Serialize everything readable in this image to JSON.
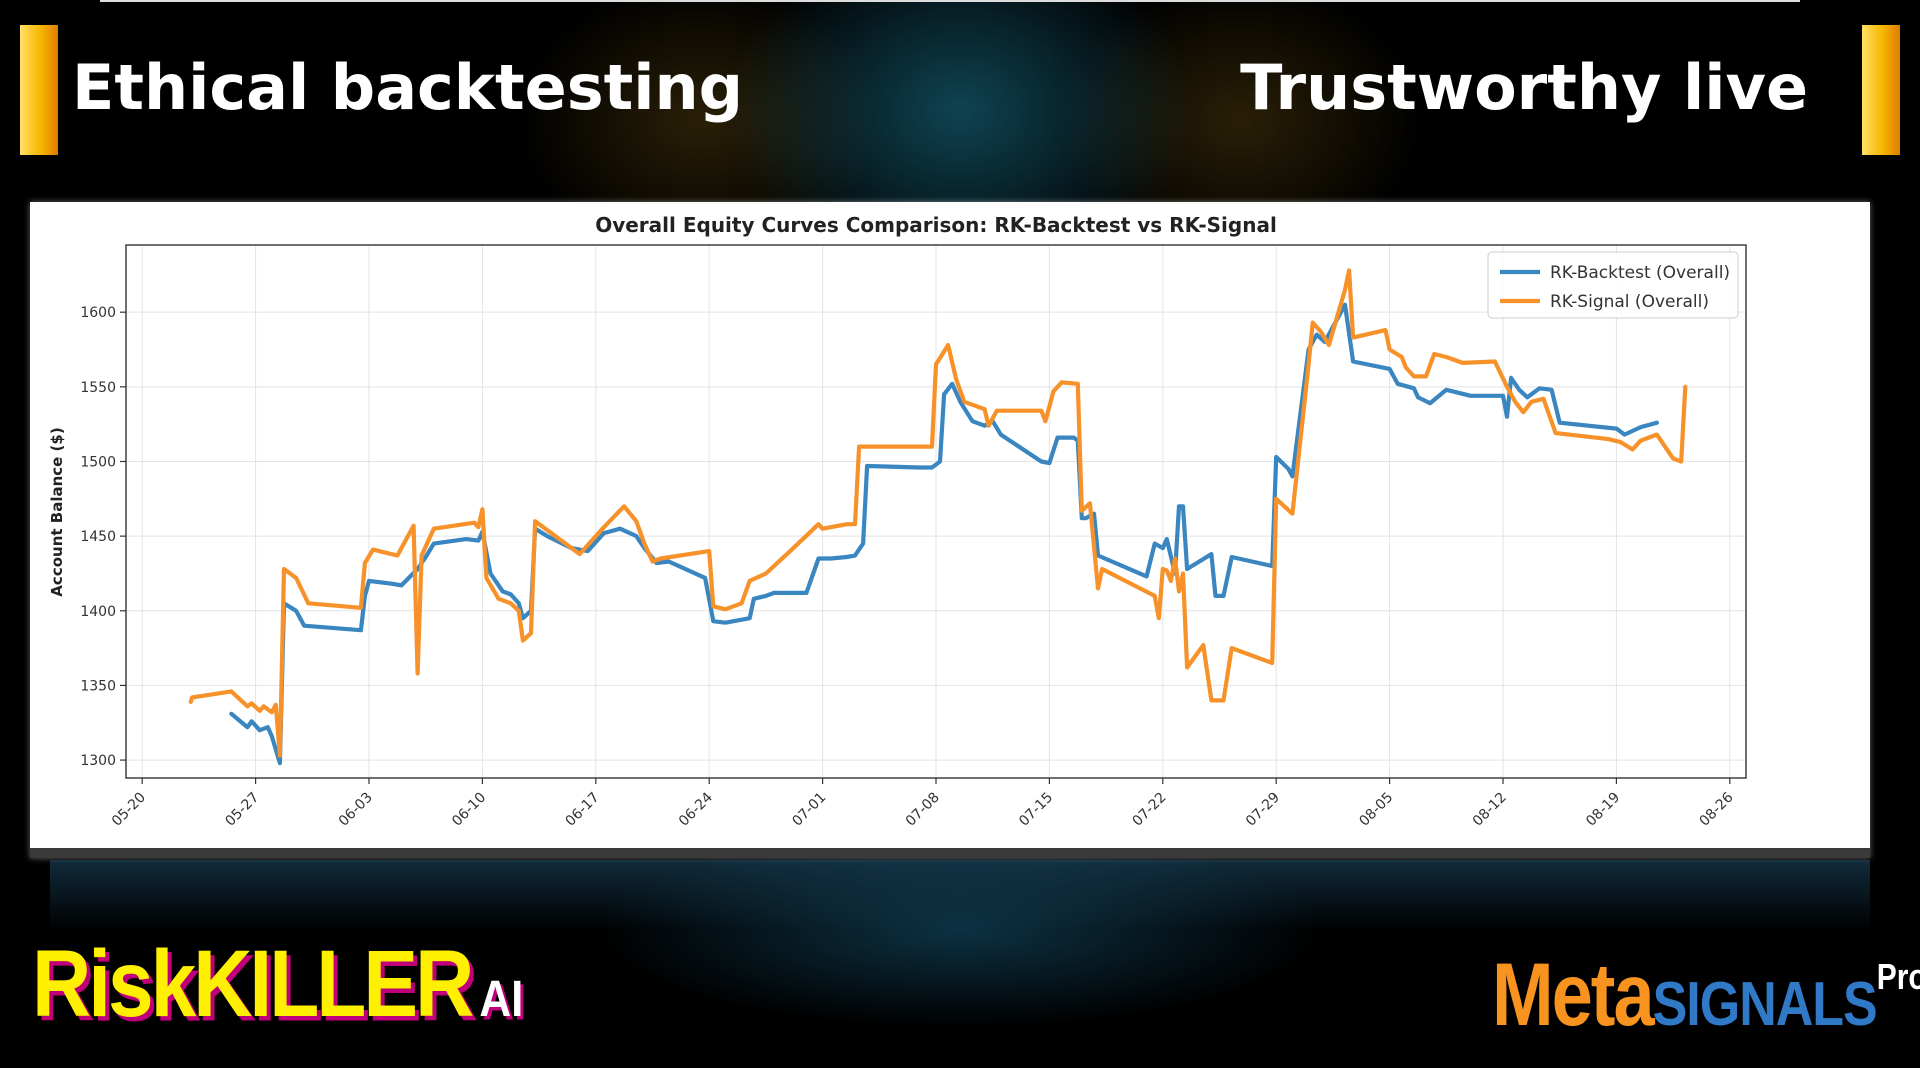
{
  "header": {
    "left_title": "Ethical backtesting",
    "right_title": "Trustworthy live"
  },
  "branding": {
    "left_logo_main": "RiskKILLER",
    "left_logo_sub": "AI",
    "right_logo_meta": "Meta",
    "right_logo_signals": "SIGNALS",
    "right_logo_pro": "Pro"
  },
  "colors": {
    "accent_bar": "#f7b500",
    "backtest_line": "#3a86c0",
    "signal_line": "#f7922a"
  },
  "chart_data": {
    "type": "line",
    "title": "Overall Equity Curves Comparison: RK-Backtest vs RK-Signal",
    "xlabel": "",
    "ylabel": "Account Balance ($)",
    "x_ticks": [
      "05-20",
      "05-27",
      "06-03",
      "06-10",
      "06-17",
      "06-24",
      "07-01",
      "07-08",
      "07-15",
      "07-22",
      "07-29",
      "08-05",
      "08-12",
      "08-19",
      "08-26"
    ],
    "y_ticks": [
      1300,
      1350,
      1400,
      1450,
      1500,
      1550,
      1600
    ],
    "xlim": [
      "2024-05-19",
      "2024-08-27"
    ],
    "ylim": [
      1288,
      1645
    ],
    "grid": true,
    "legend_position": "top-right",
    "series": [
      {
        "name": "RK-Backtest (Overall)",
        "color": "#3a86c0",
        "points": [
          [
            "2024-05-25T12:00",
            1331
          ],
          [
            "2024-05-26T12:00",
            1322
          ],
          [
            "2024-05-26T18:00",
            1326
          ],
          [
            "2024-05-27T06:00",
            1320
          ],
          [
            "2024-05-27T18:00",
            1322
          ],
          [
            "2024-05-28T00:00",
            1316
          ],
          [
            "2024-05-28T12:00",
            1298
          ],
          [
            "2024-05-28T18:00",
            1405
          ],
          [
            "2024-05-29T12:00",
            1400
          ],
          [
            "2024-05-30T00:00",
            1390
          ],
          [
            "2024-06-02T12:00",
            1387
          ],
          [
            "2024-06-02T18:00",
            1410
          ],
          [
            "2024-06-03T00:00",
            1420
          ],
          [
            "2024-06-04T12:00",
            1418
          ],
          [
            "2024-06-05T00:00",
            1417
          ],
          [
            "2024-06-06T00:00",
            1428
          ],
          [
            "2024-06-06T12:00",
            1436
          ],
          [
            "2024-06-07T00:00",
            1445
          ],
          [
            "2024-06-09T00:00",
            1448
          ],
          [
            "2024-06-09T18:00",
            1447
          ],
          [
            "2024-06-10T00:00",
            1453
          ],
          [
            "2024-06-10T12:00",
            1425
          ],
          [
            "2024-06-11T06:00",
            1413
          ],
          [
            "2024-06-11T18:00",
            1411
          ],
          [
            "2024-06-12T06:00",
            1405
          ],
          [
            "2024-06-12T12:00",
            1395
          ],
          [
            "2024-06-13T00:00",
            1400
          ],
          [
            "2024-06-13T06:00",
            1455
          ],
          [
            "2024-06-14T00:00",
            1450
          ],
          [
            "2024-06-15T12:00",
            1442
          ],
          [
            "2024-06-16T12:00",
            1440
          ],
          [
            "2024-06-17T12:00",
            1452
          ],
          [
            "2024-06-18T12:00",
            1455
          ],
          [
            "2024-06-19T12:00",
            1450
          ],
          [
            "2024-06-20T00:00",
            1442
          ],
          [
            "2024-06-20T18:00",
            1432
          ],
          [
            "2024-06-21T12:00",
            1433
          ],
          [
            "2024-06-23T18:00",
            1422
          ],
          [
            "2024-06-24T06:00",
            1393
          ],
          [
            "2024-06-25T00:00",
            1392
          ],
          [
            "2024-06-26T12:00",
            1395
          ],
          [
            "2024-06-26T18:00",
            1408
          ],
          [
            "2024-06-27T12:00",
            1410
          ],
          [
            "2024-06-28T00:00",
            1412
          ],
          [
            "2024-06-30T00:00",
            1412
          ],
          [
            "2024-06-30T18:00",
            1435
          ],
          [
            "2024-07-01T12:00",
            1435
          ],
          [
            "2024-07-02T12:00",
            1436
          ],
          [
            "2024-07-03T00:00",
            1437
          ],
          [
            "2024-07-03T12:00",
            1445
          ],
          [
            "2024-07-03T18:00",
            1497
          ],
          [
            "2024-07-07T00:00",
            1496
          ],
          [
            "2024-07-07T18:00",
            1496
          ],
          [
            "2024-07-08T06:00",
            1500
          ],
          [
            "2024-07-08T12:00",
            1545
          ],
          [
            "2024-07-09T00:00",
            1552
          ],
          [
            "2024-07-09T12:00",
            1540
          ],
          [
            "2024-07-10T06:00",
            1527
          ],
          [
            "2024-07-11T00:00",
            1524
          ],
          [
            "2024-07-11T12:00",
            1527
          ],
          [
            "2024-07-12T00:00",
            1518
          ],
          [
            "2024-07-14T12:00",
            1500
          ],
          [
            "2024-07-15T00:00",
            1499
          ],
          [
            "2024-07-15T12:00",
            1516
          ],
          [
            "2024-07-16T12:00",
            1516
          ],
          [
            "2024-07-16T18:00",
            1514
          ],
          [
            "2024-07-17T00:00",
            1462
          ],
          [
            "2024-07-17T06:00",
            1462
          ],
          [
            "2024-07-17T18:00",
            1465
          ],
          [
            "2024-07-18T00:00",
            1437
          ],
          [
            "2024-07-21T00:00",
            1423
          ],
          [
            "2024-07-21T12:00",
            1445
          ],
          [
            "2024-07-22T00:00",
            1442
          ],
          [
            "2024-07-22T06:00",
            1448
          ],
          [
            "2024-07-22T18:00",
            1425
          ],
          [
            "2024-07-23T00:00",
            1470
          ],
          [
            "2024-07-23T06:00",
            1470
          ],
          [
            "2024-07-23T12:00",
            1428
          ],
          [
            "2024-07-25T00:00",
            1438
          ],
          [
            "2024-07-25T06:00",
            1410
          ],
          [
            "2024-07-25T18:00",
            1410
          ],
          [
            "2024-07-26T06:00",
            1436
          ],
          [
            "2024-07-28T18:00",
            1430
          ],
          [
            "2024-07-29T00:00",
            1503
          ],
          [
            "2024-07-29T18:00",
            1495
          ],
          [
            "2024-07-30T00:00",
            1490
          ],
          [
            "2024-07-31T00:00",
            1575
          ],
          [
            "2024-07-31T12:00",
            1585
          ],
          [
            "2024-08-01T00:00",
            1580
          ],
          [
            "2024-08-02T06:00",
            1605
          ],
          [
            "2024-08-02T18:00",
            1567
          ],
          [
            "2024-08-05T00:00",
            1562
          ],
          [
            "2024-08-05T12:00",
            1552
          ],
          [
            "2024-08-06T12:00",
            1549
          ],
          [
            "2024-08-06T18:00",
            1543
          ],
          [
            "2024-08-07T12:00",
            1539
          ],
          [
            "2024-08-08T12:00",
            1548
          ],
          [
            "2024-08-10T00:00",
            1544
          ],
          [
            "2024-08-12T00:00",
            1544
          ],
          [
            "2024-08-12T06:00",
            1530
          ],
          [
            "2024-08-12T12:00",
            1556
          ],
          [
            "2024-08-13T00:00",
            1548
          ],
          [
            "2024-08-13T12:00",
            1543
          ],
          [
            "2024-08-14T06:00",
            1549
          ],
          [
            "2024-08-15T00:00",
            1548
          ],
          [
            "2024-08-15T12:00",
            1526
          ],
          [
            "2024-08-19T00:00",
            1522
          ],
          [
            "2024-08-19T12:00",
            1518
          ],
          [
            "2024-08-20T12:00",
            1523
          ],
          [
            "2024-08-21T12:00",
            1526
          ]
        ]
      },
      {
        "name": "RK-Signal (Overall)",
        "color": "#f7922a",
        "points": [
          [
            "2024-05-23T00:00",
            1339
          ],
          [
            "2024-05-23T02:00",
            1342
          ],
          [
            "2024-05-25T12:00",
            1346
          ],
          [
            "2024-05-26T12:00",
            1336
          ],
          [
            "2024-05-26T18:00",
            1338
          ],
          [
            "2024-05-27T06:00",
            1333
          ],
          [
            "2024-05-27T12:00",
            1336
          ],
          [
            "2024-05-28T00:00",
            1332
          ],
          [
            "2024-05-28T06:00",
            1337
          ],
          [
            "2024-05-28T12:00",
            1303
          ],
          [
            "2024-05-28T18:00",
            1428
          ],
          [
            "2024-05-29T12:00",
            1422
          ],
          [
            "2024-05-30T06:00",
            1405
          ],
          [
            "2024-06-02T12:00",
            1402
          ],
          [
            "2024-06-02T18:00",
            1432
          ],
          [
            "2024-06-03T06:00",
            1441
          ],
          [
            "2024-06-04T18:00",
            1437
          ],
          [
            "2024-06-05T18:00",
            1457
          ],
          [
            "2024-06-06T00:00",
            1358
          ],
          [
            "2024-06-06T06:00",
            1437
          ],
          [
            "2024-06-07T00:00",
            1455
          ],
          [
            "2024-06-09T12:00",
            1459
          ],
          [
            "2024-06-09T18:00",
            1456
          ],
          [
            "2024-06-10T00:00",
            1468
          ],
          [
            "2024-06-10T06:00",
            1422
          ],
          [
            "2024-06-11T00:00",
            1408
          ],
          [
            "2024-06-11T18:00",
            1405
          ],
          [
            "2024-06-12T06:00",
            1400
          ],
          [
            "2024-06-12T12:00",
            1380
          ],
          [
            "2024-06-13T00:00",
            1385
          ],
          [
            "2024-06-13T06:00",
            1460
          ],
          [
            "2024-06-14T12:00",
            1450
          ],
          [
            "2024-06-16T00:00",
            1438
          ],
          [
            "2024-06-17T12:00",
            1456
          ],
          [
            "2024-06-18T18:00",
            1470
          ],
          [
            "2024-06-19T12:00",
            1460
          ],
          [
            "2024-06-20T00:00",
            1445
          ],
          [
            "2024-06-20T12:00",
            1433
          ],
          [
            "2024-06-21T00:00",
            1435
          ],
          [
            "2024-06-24T00:00",
            1440
          ],
          [
            "2024-06-24T06:00",
            1403
          ],
          [
            "2024-06-25T00:00",
            1401
          ],
          [
            "2024-06-26T00:00",
            1405
          ],
          [
            "2024-06-26T12:00",
            1420
          ],
          [
            "2024-06-27T12:00",
            1425
          ],
          [
            "2024-06-29T00:00",
            1440
          ],
          [
            "2024-06-30T18:00",
            1458
          ],
          [
            "2024-07-01T00:00",
            1455
          ],
          [
            "2024-07-02T12:00",
            1458
          ],
          [
            "2024-07-03T00:00",
            1458
          ],
          [
            "2024-07-03T06:00",
            1510
          ],
          [
            "2024-07-07T12:00",
            1510
          ],
          [
            "2024-07-07T18:00",
            1510
          ],
          [
            "2024-07-08T00:00",
            1565
          ],
          [
            "2024-07-08T18:00",
            1578
          ],
          [
            "2024-07-09T06:00",
            1555
          ],
          [
            "2024-07-09T18:00",
            1540
          ],
          [
            "2024-07-11T00:00",
            1535
          ],
          [
            "2024-07-11T06:00",
            1524
          ],
          [
            "2024-07-11T18:00",
            1534
          ],
          [
            "2024-07-14T12:00",
            1534
          ],
          [
            "2024-07-14T18:00",
            1527
          ],
          [
            "2024-07-15T06:00",
            1547
          ],
          [
            "2024-07-15T18:00",
            1553
          ],
          [
            "2024-07-16T18:00",
            1552
          ],
          [
            "2024-07-17T00:00",
            1467
          ],
          [
            "2024-07-17T12:00",
            1472
          ],
          [
            "2024-07-18T00:00",
            1415
          ],
          [
            "2024-07-18T06:00",
            1428
          ],
          [
            "2024-07-21T12:00",
            1410
          ],
          [
            "2024-07-21T18:00",
            1395
          ],
          [
            "2024-07-22T00:00",
            1428
          ],
          [
            "2024-07-22T06:00",
            1427
          ],
          [
            "2024-07-22T12:00",
            1420
          ],
          [
            "2024-07-22T18:00",
            1435
          ],
          [
            "2024-07-23T00:00",
            1413
          ],
          [
            "2024-07-23T06:00",
            1425
          ],
          [
            "2024-07-23T12:00",
            1362
          ],
          [
            "2024-07-24T12:00",
            1377
          ],
          [
            "2024-07-25T00:00",
            1340
          ],
          [
            "2024-07-25T18:00",
            1340
          ],
          [
            "2024-07-26T06:00",
            1375
          ],
          [
            "2024-07-28T18:00",
            1365
          ],
          [
            "2024-07-29T00:00",
            1475
          ],
          [
            "2024-07-29T12:00",
            1470
          ],
          [
            "2024-07-30T00:00",
            1465
          ],
          [
            "2024-07-31T00:00",
            1565
          ],
          [
            "2024-07-31T06:00",
            1593
          ],
          [
            "2024-07-31T18:00",
            1587
          ],
          [
            "2024-08-01T06:00",
            1578
          ],
          [
            "2024-08-02T06:00",
            1615
          ],
          [
            "2024-08-02T12:00",
            1628
          ],
          [
            "2024-08-02T18:00",
            1583
          ],
          [
            "2024-08-04T18:00",
            1588
          ],
          [
            "2024-08-05T00:00",
            1575
          ],
          [
            "2024-08-05T18:00",
            1570
          ],
          [
            "2024-08-06T00:00",
            1563
          ],
          [
            "2024-08-06T12:00",
            1557
          ],
          [
            "2024-08-07T06:00",
            1557
          ],
          [
            "2024-08-07T18:00",
            1572
          ],
          [
            "2024-08-08T12:00",
            1570
          ],
          [
            "2024-08-09T12:00",
            1566
          ],
          [
            "2024-08-11T12:00",
            1567
          ],
          [
            "2024-08-12T06:00",
            1550
          ],
          [
            "2024-08-12T18:00",
            1540
          ],
          [
            "2024-08-13T06:00",
            1533
          ],
          [
            "2024-08-13T18:00",
            1540
          ],
          [
            "2024-08-14T12:00",
            1542
          ],
          [
            "2024-08-15T06:00",
            1519
          ],
          [
            "2024-08-18T12:00",
            1515
          ],
          [
            "2024-08-19T06:00",
            1513
          ],
          [
            "2024-08-20T00:00",
            1508
          ],
          [
            "2024-08-20T12:00",
            1514
          ],
          [
            "2024-08-21T12:00",
            1518
          ],
          [
            "2024-08-22T12:00",
            1502
          ],
          [
            "2024-08-23T00:00",
            1500
          ],
          [
            "2024-08-23T06:00",
            1550
          ]
        ]
      }
    ]
  }
}
